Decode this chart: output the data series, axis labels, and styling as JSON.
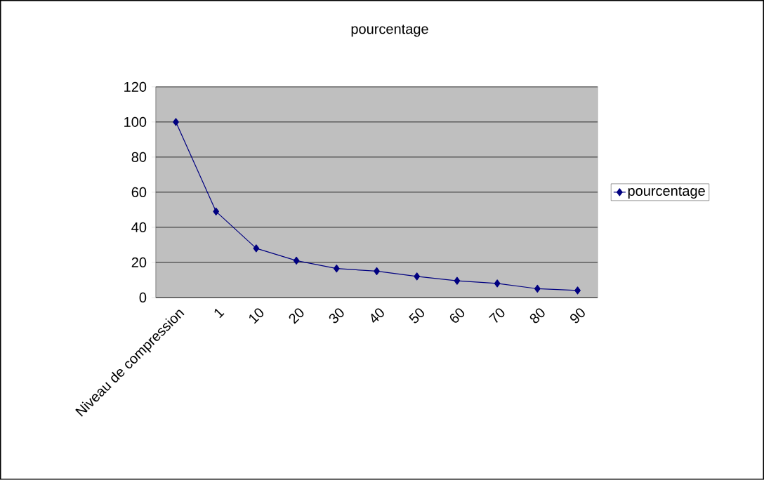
{
  "chart_data": {
    "type": "line",
    "title": "pourcentage",
    "categories": [
      "Niveau de compression",
      "1",
      "10",
      "20",
      "30",
      "40",
      "50",
      "60",
      "70",
      "80",
      "90"
    ],
    "series": [
      {
        "name": "pourcentage",
        "color": "#000080",
        "values": [
          100,
          49,
          28,
          21,
          16.5,
          15,
          12,
          9.5,
          8,
          5,
          4
        ]
      }
    ],
    "ylim": [
      0,
      120
    ],
    "yticks": [
      0,
      20,
      40,
      60,
      80,
      100,
      120
    ],
    "grid": "y",
    "legend": "right",
    "marker": "diamond",
    "line_style": "solid"
  }
}
